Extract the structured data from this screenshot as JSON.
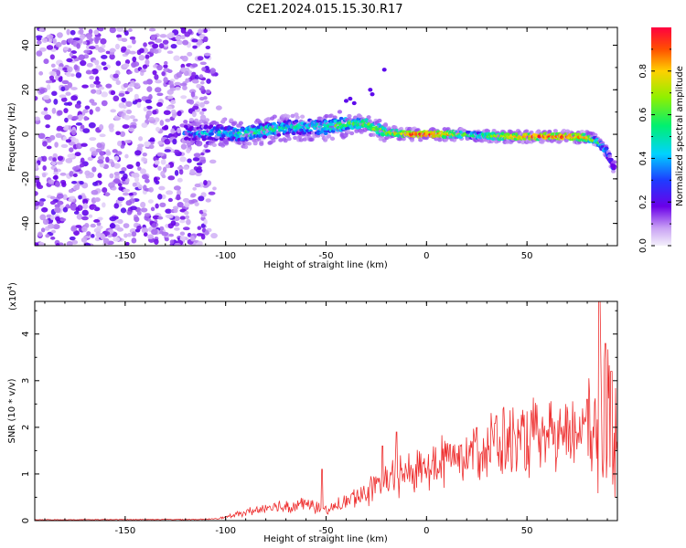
{
  "figure_title": "C2E1.2024.015.15.30.R17",
  "chart_data": [
    {
      "type": "heatmap",
      "xlabel": "Height of straight line (km)",
      "ylabel": "Frequency (Hz)",
      "xlim": [
        -195,
        95
      ],
      "ylim": [
        -50,
        48
      ],
      "x_ticks": [
        -150,
        -100,
        -50,
        0,
        50
      ],
      "y_ticks": [
        -40,
        -20,
        0,
        20,
        40
      ],
      "colorbar": {
        "label": "Normalized spectral amplitude",
        "range": [
          0,
          1
        ],
        "ticks": [
          0.0,
          0.2,
          0.4,
          0.6,
          0.8
        ]
      },
      "ridge": [
        {
          "x": -118,
          "y": 0.5,
          "amp": 0.35
        },
        {
          "x": -100,
          "y": 0.8,
          "amp": 0.45
        },
        {
          "x": -90,
          "y": 0.2,
          "amp": 0.55
        },
        {
          "x": -80,
          "y": 1.8,
          "amp": 0.55
        },
        {
          "x": -70,
          "y": 3.0,
          "amp": 0.5
        },
        {
          "x": -60,
          "y": 3.5,
          "amp": 0.5
        },
        {
          "x": -50,
          "y": 3.2,
          "amp": 0.55
        },
        {
          "x": -40,
          "y": 4.5,
          "amp": 0.6
        },
        {
          "x": -30,
          "y": 5.0,
          "amp": 0.65
        },
        {
          "x": -25,
          "y": 2.5,
          "amp": 0.7
        },
        {
          "x": -20,
          "y": 1.0,
          "amp": 0.75
        },
        {
          "x": -10,
          "y": 0.0,
          "amp": 0.8
        },
        {
          "x": -5,
          "y": 0.0,
          "amp": 0.95
        },
        {
          "x": 5,
          "y": 0.0,
          "amp": 0.95
        },
        {
          "x": 15,
          "y": 0.0,
          "amp": 0.7
        },
        {
          "x": 25,
          "y": -0.5,
          "amp": 0.55
        },
        {
          "x": 40,
          "y": -1.0,
          "amp": 0.8
        },
        {
          "x": 55,
          "y": -1.0,
          "amp": 0.92
        },
        {
          "x": 70,
          "y": -1.0,
          "amp": 0.9
        },
        {
          "x": 80,
          "y": -1.5,
          "amp": 0.85
        },
        {
          "x": 85,
          "y": -3.0,
          "amp": 0.55
        },
        {
          "x": 90,
          "y": -8.0,
          "amp": 0.4
        },
        {
          "x": 93,
          "y": -15.0,
          "amp": 0.3
        }
      ]
    },
    {
      "type": "line",
      "xlabel": "Height of straight line (km)",
      "ylabel": "SNR (10 * v/v)",
      "y_multiplier": "(x10",
      "y_multiplier_exp": "4",
      "xlim": [
        -195,
        95
      ],
      "ylim": [
        0,
        4.7
      ],
      "x_ticks": [
        -150,
        -100,
        -50,
        0,
        50
      ],
      "y_ticks": [
        0,
        1,
        2,
        3,
        4
      ],
      "line_color": "#ee3030",
      "envelope": [
        {
          "x": -195,
          "y": 0.02
        },
        {
          "x": -110,
          "y": 0.03
        },
        {
          "x": -100,
          "y": 0.08
        },
        {
          "x": -90,
          "y": 0.2
        },
        {
          "x": -80,
          "y": 0.3
        },
        {
          "x": -70,
          "y": 0.35
        },
        {
          "x": -60,
          "y": 0.4
        },
        {
          "x": -50,
          "y": 0.25
        },
        {
          "x": -40,
          "y": 0.45
        },
        {
          "x": -30,
          "y": 0.7
        },
        {
          "x": -20,
          "y": 0.95
        },
        {
          "x": -10,
          "y": 1.15
        },
        {
          "x": 0,
          "y": 1.3
        },
        {
          "x": 10,
          "y": 1.5
        },
        {
          "x": 20,
          "y": 1.7
        },
        {
          "x": 30,
          "y": 1.85
        },
        {
          "x": 40,
          "y": 1.9
        },
        {
          "x": 50,
          "y": 1.95
        },
        {
          "x": 60,
          "y": 1.95
        },
        {
          "x": 70,
          "y": 2.0
        },
        {
          "x": 78,
          "y": 2.2
        },
        {
          "x": 83,
          "y": 2.0
        },
        {
          "x": 88,
          "y": 2.5
        },
        {
          "x": 92,
          "y": 2.0
        },
        {
          "x": 95,
          "y": 1.8
        }
      ],
      "spikes": [
        {
          "x": -52,
          "y": 1.1
        },
        {
          "x": -22,
          "y": 1.6
        },
        {
          "x": -15,
          "y": 1.9
        },
        {
          "x": 80,
          "y": 2.6
        },
        {
          "x": 86,
          "y": 4.7
        },
        {
          "x": 89,
          "y": 3.8
        },
        {
          "x": 92,
          "y": 3.2
        }
      ]
    }
  ]
}
